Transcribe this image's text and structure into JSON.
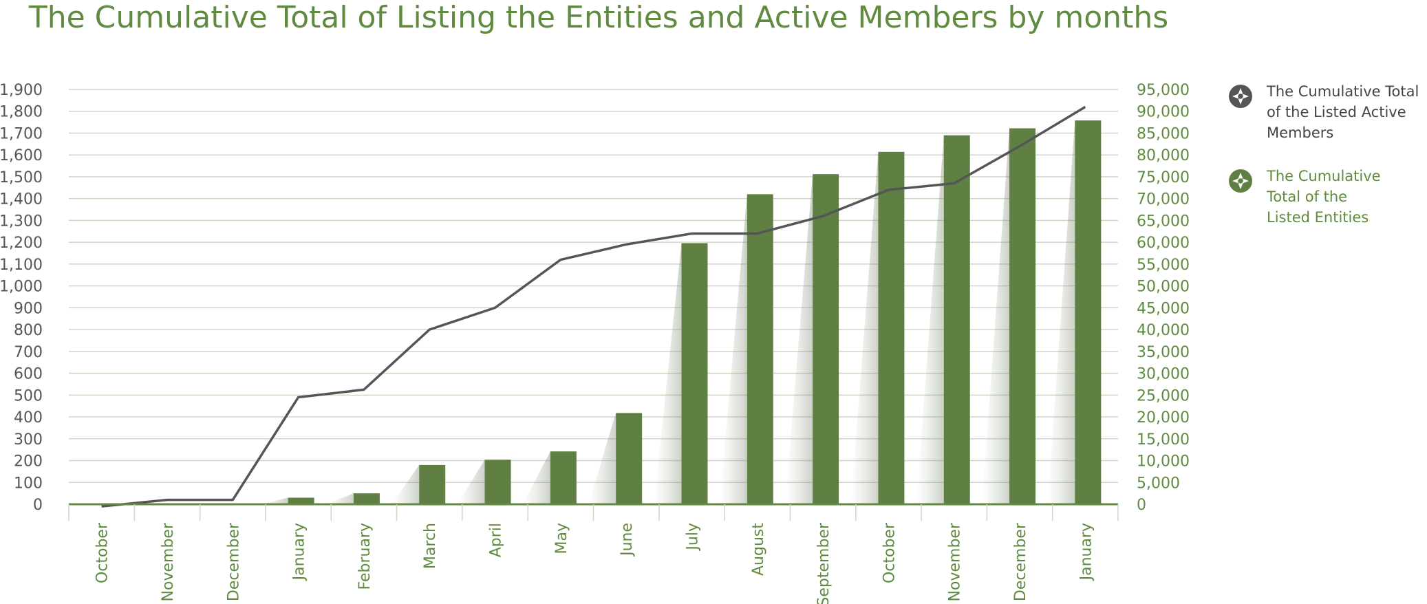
{
  "chart_data": {
    "type": "bar",
    "title": "The Cumulative Total of Listing the Entities and Active Members by months",
    "categories": [
      "October",
      "November",
      "December",
      "January",
      "February",
      "March",
      "April",
      "May",
      "June",
      "July",
      "August",
      "September",
      "October",
      "November",
      "December",
      "January"
    ],
    "series": [
      {
        "name": "The Cumulative Total of the Listed Active Members",
        "type": "line",
        "axis": "left",
        "color": "#555555",
        "values": [
          -10,
          20,
          20,
          490,
          525,
          800,
          900,
          1120,
          1190,
          1240,
          1240,
          1320,
          1440,
          1470,
          1640,
          1820
        ]
      },
      {
        "name": "The Cumulative Total of the Listed Entities",
        "type": "bar",
        "axis": "right",
        "color": "#5f8042",
        "values": [
          0,
          0,
          0,
          1500,
          2500,
          9000,
          10200,
          12100,
          20900,
          59800,
          71000,
          75600,
          80700,
          84500,
          86100,
          87900
        ]
      }
    ],
    "y_left": {
      "ylim": [
        0,
        1900
      ],
      "ticks": [
        "0",
        "100",
        "200",
        "300",
        "400",
        "500",
        "600",
        "700",
        "800",
        "900",
        "1,000",
        "1,100",
        "1,200",
        "1,300",
        "1,400",
        "1,500",
        "1,600",
        "1,700",
        "1,800",
        "1,900"
      ]
    },
    "y_right": {
      "ylim": [
        0,
        95000
      ],
      "ticks": [
        "0",
        "5,000",
        "10,000",
        "15,000",
        "20,000",
        "25,000",
        "30,000",
        "35,000",
        "40,000",
        "45,000",
        "50,000",
        "55,000",
        "60,000",
        "65,000",
        "70,000",
        "75,000",
        "80,000",
        "85,000",
        "90,000",
        "95,000"
      ]
    },
    "grid": true,
    "legend_position": "right"
  },
  "legend": {
    "members": {
      "line1": "The Cumulative Total",
      "line2": "of the Listed Active",
      "line3": "Members",
      "color": "#444444"
    },
    "entities": {
      "line1": "The Cumulative",
      "line2": "Total of the",
      "line3": "Listed Entities",
      "color": "#5f8a3f"
    }
  },
  "colors": {
    "accent_green": "#5f8a3f",
    "bar_green": "#5f8042",
    "line_gray": "#555555",
    "grid": "#cfd6c4"
  }
}
